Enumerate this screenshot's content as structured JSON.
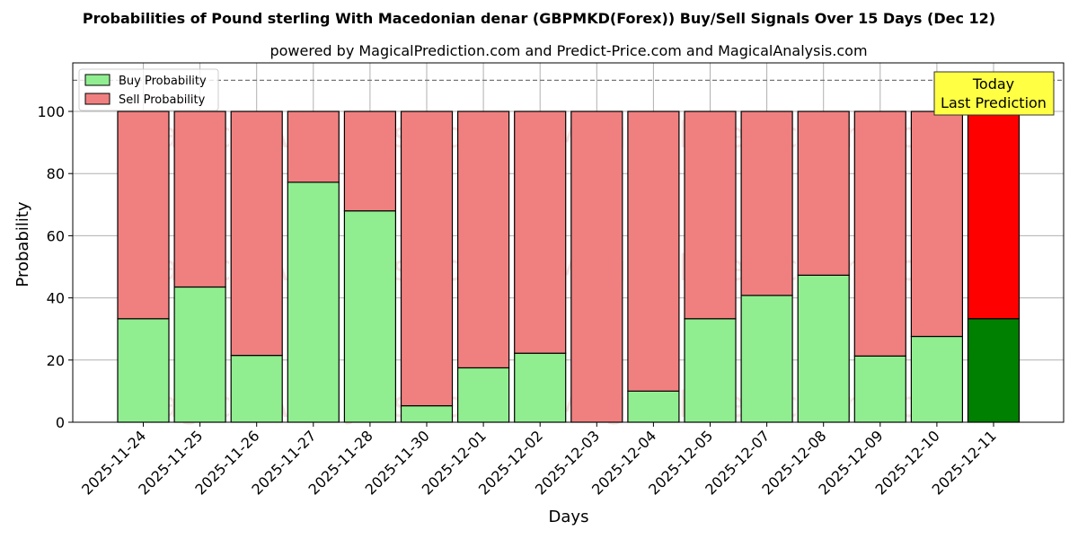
{
  "chart_data": {
    "type": "bar",
    "stacked": true,
    "title": "Probabilities of Pound sterling With Macedonian denar (GBPMKD(Forex)) Buy/Sell Signals Over 15 Days (Dec 12)",
    "subtitle": "powered by MagicalPrediction.com and Predict-Price.com and MagicalAnalysis.com",
    "xlabel": "Days",
    "ylabel": "Probability",
    "ylim": [
      0,
      115
    ],
    "yticks": [
      0,
      20,
      40,
      60,
      80,
      100
    ],
    "reference_line": 110,
    "grid": true,
    "legend_position": "top-left",
    "categories": [
      "2025-11-24",
      "2025-11-25",
      "2025-11-26",
      "2025-11-27",
      "2025-11-28",
      "2025-11-30",
      "2025-12-01",
      "2025-12-02",
      "2025-12-03",
      "2025-12-04",
      "2025-12-05",
      "2025-12-07",
      "2025-12-08",
      "2025-12-09",
      "2025-12-10",
      "2025-12-11"
    ],
    "series": [
      {
        "name": "Buy Probability",
        "color": "#90ee90",
        "highlight_color": "#008000",
        "values": [
          33.3,
          43.5,
          21.5,
          77.2,
          68.0,
          5.3,
          17.5,
          22.2,
          0,
          10.0,
          33.3,
          40.8,
          47.3,
          21.3,
          27.6,
          33.3
        ]
      },
      {
        "name": "Sell Probability",
        "color": "#f08080",
        "highlight_color": "#ff0000",
        "values": [
          66.7,
          56.5,
          78.5,
          22.8,
          32.0,
          94.7,
          82.5,
          77.8,
          100,
          90.0,
          66.7,
          59.2,
          52.7,
          78.7,
          72.4,
          66.7
        ]
      }
    ],
    "highlight_index": 15,
    "annotation": {
      "line1": "Today",
      "line2": "Last Prediction",
      "color": "#ffff44"
    },
    "watermarks": [
      "MagicalAnalysis.com",
      "MagicalPrediction.com"
    ]
  }
}
